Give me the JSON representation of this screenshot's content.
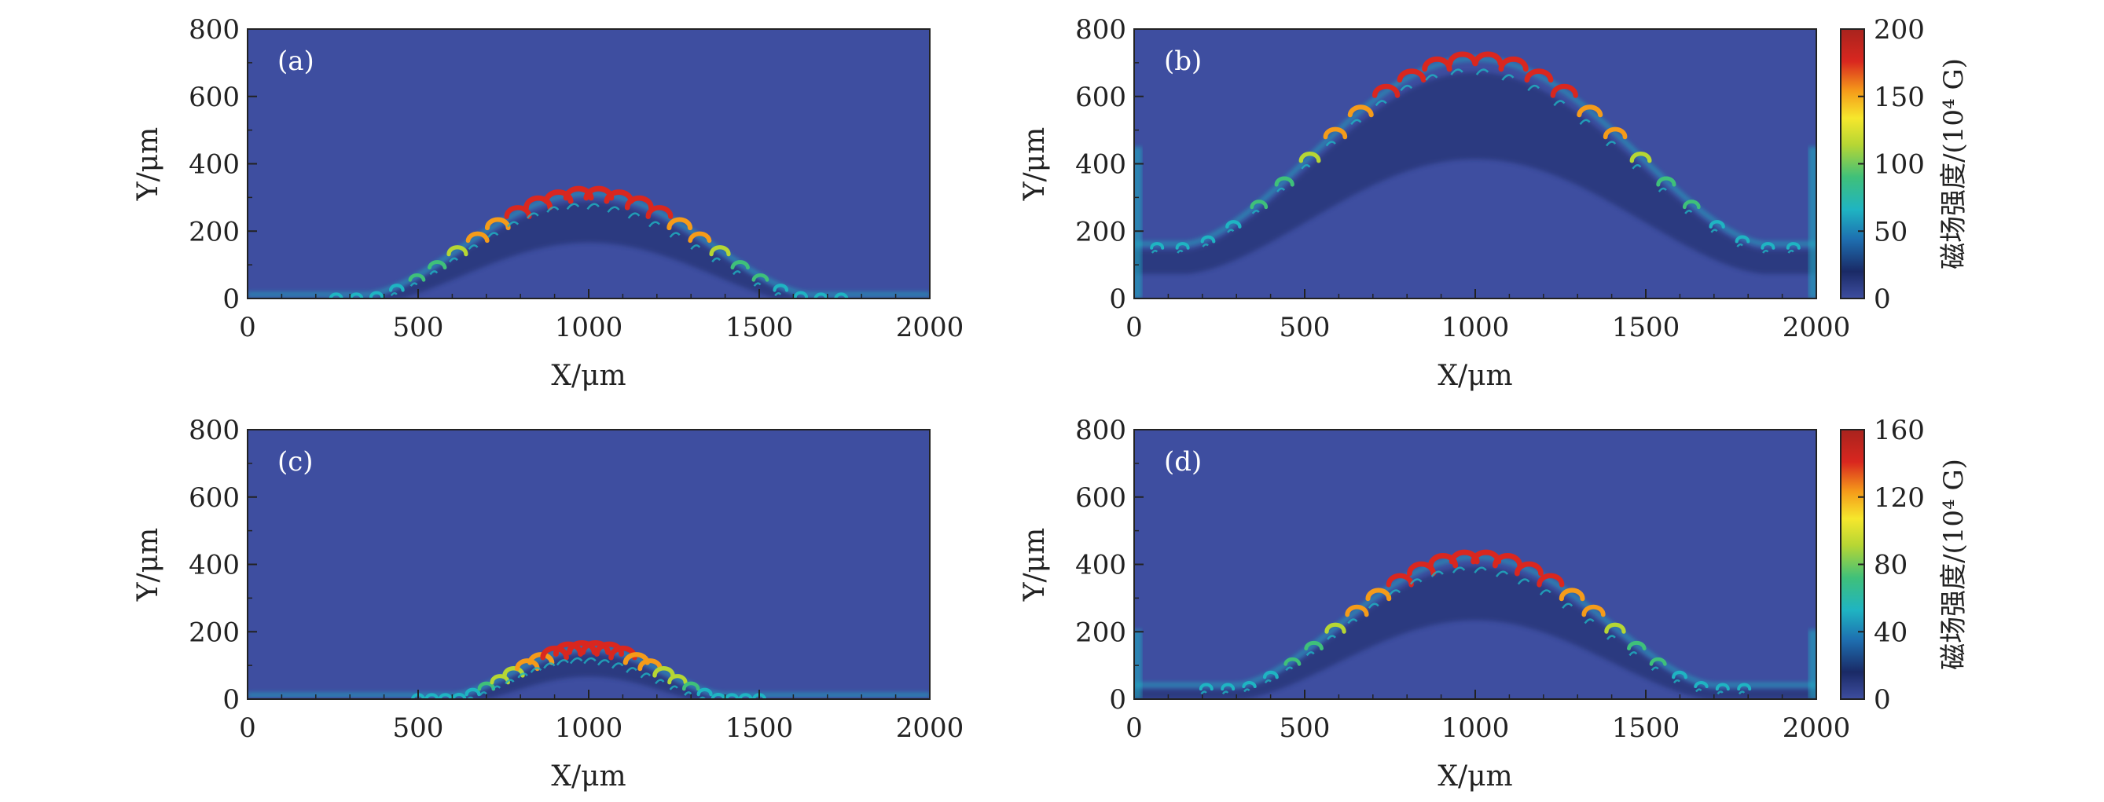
{
  "chart_data": [
    {
      "type": "heatmap",
      "panel_label": "(a)",
      "xlabel": "X/μm",
      "ylabel": "Y/μm",
      "xlim": [
        0,
        2000
      ],
      "ylim": [
        0,
        800
      ],
      "xticks": [
        "0",
        "500",
        "1000",
        "1500",
        "2000"
      ],
      "yticks": [
        "0",
        "200",
        "400",
        "600",
        "800"
      ],
      "front_apex_y": 300,
      "front_half_width": 650,
      "colorbar": null
    },
    {
      "type": "heatmap",
      "panel_label": "(b)",
      "xlabel": "X/μm",
      "ylabel": "Y/μm",
      "xlim": [
        0,
        2000
      ],
      "ylim": [
        0,
        800
      ],
      "xticks": [
        "0",
        "500",
        "1000",
        "1500",
        "2000"
      ],
      "yticks": [
        "0",
        "200",
        "400",
        "600",
        "800"
      ],
      "front_apex_y": 700,
      "front_half_width": 850,
      "front_base_y": 150,
      "colorbar": {
        "label": "磁场强度/(10⁴ G)",
        "range": [
          0,
          200
        ],
        "ticks": [
          "0",
          "50",
          "100",
          "150",
          "200"
        ]
      }
    },
    {
      "type": "heatmap",
      "panel_label": "(c)",
      "xlabel": "X/μm",
      "ylabel": "Y/μm",
      "xlim": [
        0,
        2000
      ],
      "ylim": [
        0,
        800
      ],
      "xticks": [
        "0",
        "500",
        "1000",
        "1500",
        "2000"
      ],
      "yticks": [
        "0",
        "200",
        "400",
        "600",
        "800"
      ],
      "front_apex_y": 140,
      "front_half_width": 400,
      "colorbar": null
    },
    {
      "type": "heatmap",
      "panel_label": "(d)",
      "xlabel": "X/μm",
      "ylabel": "Y/μm",
      "xlim": [
        0,
        2000
      ],
      "ylim": [
        0,
        800
      ],
      "xticks": [
        "0",
        "500",
        "1000",
        "1500",
        "2000"
      ],
      "yticks": [
        "0",
        "200",
        "400",
        "600",
        "800"
      ],
      "front_apex_y": 410,
      "front_half_width": 700,
      "front_base_y": 30,
      "colorbar": {
        "label": "磁场强度/(10⁴ G)",
        "range": [
          0,
          160
        ],
        "ticks": [
          "0",
          "40",
          "80",
          "120",
          "160"
        ]
      }
    }
  ],
  "colors": {
    "background_field": "#3e4ea0",
    "colormap": [
      "#2a3a8e",
      "#3e4ea0",
      "#1a2a66",
      "#1fb4c2",
      "#3fc07a",
      "#b6d634",
      "#f6e72c",
      "#f59b1a",
      "#d9271f",
      "#a8231e"
    ]
  }
}
